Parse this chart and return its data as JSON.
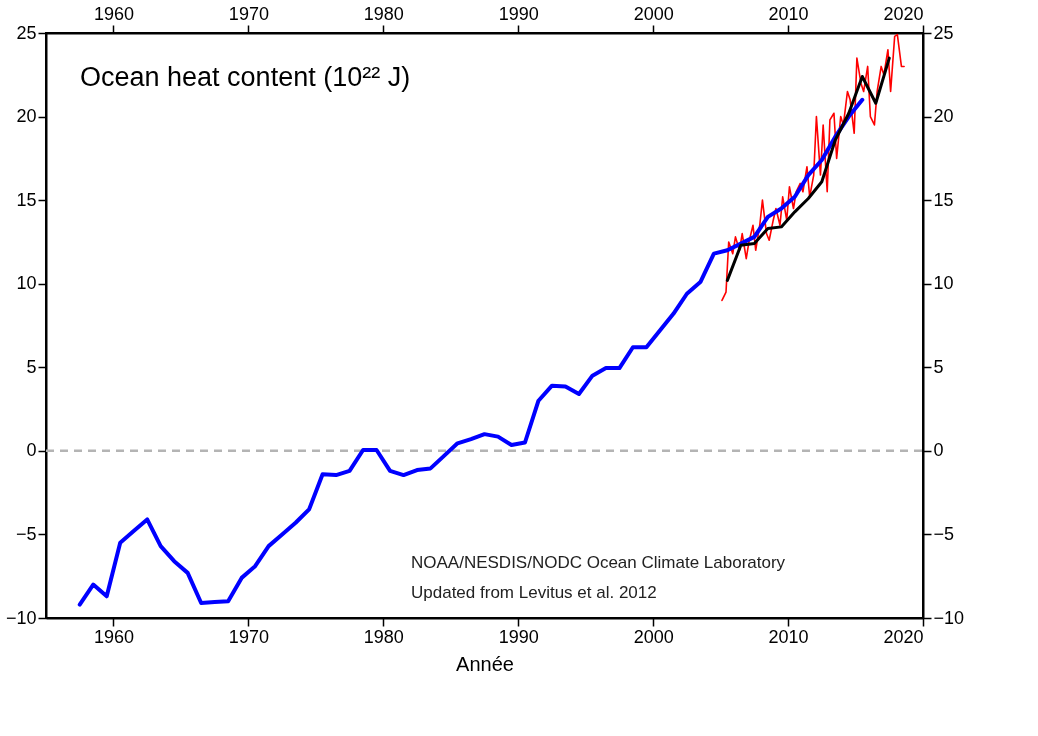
{
  "chart_data": {
    "type": "line",
    "title": "Ocean heat content (10²² J)",
    "xlabel": "Année",
    "xlim": [
      1955,
      2020
    ],
    "xticks": [
      1960,
      1970,
      1980,
      1990,
      2000,
      2010,
      2020
    ],
    "x2lim": [
      1955,
      2020
    ],
    "x2ticks": [
      1960,
      1970,
      1980,
      1990,
      2000,
      2010,
      2020
    ],
    "ylim": [
      -10,
      25
    ],
    "yticks": [
      -10,
      -5,
      0,
      5,
      10,
      15,
      20,
      25
    ],
    "y2lim": [
      -10,
      25
    ],
    "y2ticks": [
      -10,
      -5,
      0,
      5,
      10,
      15,
      20,
      25
    ],
    "grid": false,
    "legend": false,
    "line_style": "solid",
    "ref_lines": [
      {
        "axis": "y",
        "value": 0,
        "color": "#b4b4b4",
        "line_style": "dashed"
      }
    ],
    "annotations": [
      "NOAA/NESDIS/NODC Ocean Climate Laboratory",
      "Updated from Levitus et al. 2012"
    ],
    "series": [
      {
        "color": "#ff0000",
        "x": [
          2005.1,
          2005.4,
          2005.6,
          2005.9,
          2006.1,
          2006.4,
          2006.6,
          2006.9,
          2007.1,
          2007.4,
          2007.6,
          2007.9,
          2008.1,
          2008.4,
          2008.6,
          2008.9,
          2009.1,
          2009.4,
          2009.6,
          2009.9,
          2010.1,
          2010.4,
          2010.6,
          2010.9,
          2011.1,
          2011.4,
          2011.6,
          2011.9,
          2012.1,
          2012.4,
          2012.6,
          2012.9,
          2013.1,
          2013.4,
          2013.6,
          2013.9,
          2014.1,
          2014.4,
          2014.6,
          2014.9,
          2015.1,
          2015.4,
          2015.6,
          2015.9,
          2016.1,
          2016.4,
          2016.6,
          2016.9,
          2017.1,
          2017.4,
          2017.6,
          2017.9,
          2018.1,
          2018.4,
          2018.6
        ],
        "values": [
          9.0,
          9.5,
          12.5,
          11.8,
          12.8,
          12.0,
          13.0,
          11.5,
          12.5,
          13.5,
          12.0,
          13.5,
          15.0,
          13.0,
          12.6,
          13.8,
          14.5,
          13.5,
          15.2,
          13.8,
          15.8,
          14.5,
          15.5,
          16.0,
          15.5,
          17.0,
          15.2,
          16.5,
          20.0,
          16.5,
          19.5,
          15.5,
          19.8,
          20.2,
          17.5,
          20.0,
          19.5,
          21.5,
          21.0,
          19.0,
          23.5,
          22.0,
          21.5,
          23.0,
          20.0,
          19.5,
          21.5,
          23.0,
          22.5,
          24.0,
          21.5,
          24.8,
          24.9,
          23.0,
          23.0
        ]
      },
      {
        "color": "#0000ff",
        "x": [
          1957.5,
          1958.5,
          1959.5,
          1960.5,
          1961.5,
          1962.5,
          1963.5,
          1964.5,
          1965.5,
          1966.5,
          1967.5,
          1968.5,
          1969.5,
          1970.5,
          1971.5,
          1972.5,
          1973.5,
          1974.5,
          1975.5,
          1976.5,
          1977.5,
          1978.5,
          1979.5,
          1980.5,
          1981.5,
          1982.5,
          1983.5,
          1984.5,
          1985.5,
          1986.5,
          1987.5,
          1988.5,
          1989.5,
          1990.5,
          1991.5,
          1992.5,
          1993.5,
          1994.5,
          1995.5,
          1996.5,
          1997.5,
          1998.5,
          1999.5,
          2000.5,
          2001.5,
          2002.5,
          2003.5,
          2004.5,
          2005.5,
          2006.5,
          2007.5,
          2008.5,
          2009.5,
          2010.5,
          2011.5,
          2012.5,
          2013.5,
          2014.5,
          2015.5
        ],
        "values": [
          -9.2,
          -8.0,
          -8.7,
          -5.5,
          -4.8,
          -4.1,
          -5.7,
          -6.6,
          -7.3,
          -9.1,
          -9.05,
          -9.0,
          -7.6,
          -6.9,
          -5.7,
          -5.0,
          -4.3,
          -3.5,
          -1.4,
          -1.45,
          -1.2,
          0.05,
          0.05,
          -1.2,
          -1.45,
          -1.15,
          -1.05,
          -0.3,
          0.45,
          0.7,
          1.0,
          0.85,
          0.35,
          0.5,
          3.0,
          3.9,
          3.85,
          3.4,
          4.5,
          4.95,
          4.95,
          6.2,
          6.2,
          7.2,
          8.2,
          9.4,
          10.1,
          11.8,
          12.0,
          12.4,
          12.8,
          14.0,
          14.5,
          15.2,
          16.5,
          17.4,
          18.8,
          20.0,
          21.0
        ]
      },
      {
        "color": "#000000",
        "x": [
          2005.5,
          2006.5,
          2007.5,
          2008.5,
          2009.5,
          2010.5,
          2011.5,
          2012.5,
          2013.5,
          2014.5,
          2015.5,
          2016.5,
          2017.5
        ],
        "values": [
          10.2,
          12.3,
          12.4,
          13.3,
          13.4,
          14.3,
          15.1,
          16.1,
          18.6,
          20.2,
          22.4,
          20.8,
          23.5
        ]
      }
    ]
  }
}
